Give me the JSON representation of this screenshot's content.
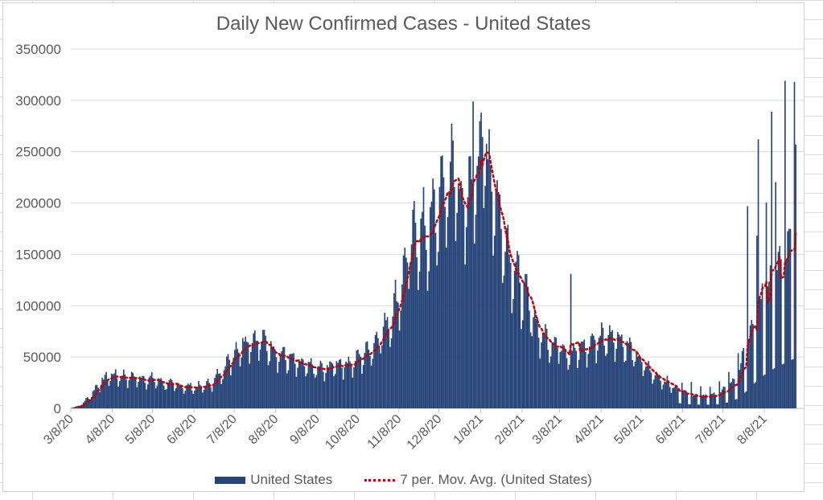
{
  "chart_data": {
    "type": "bar",
    "title": "Daily New Confirmed Cases - United States",
    "xlabel": "",
    "ylabel": "",
    "ylim": [
      0,
      350000
    ],
    "yticks": [
      0,
      50000,
      100000,
      150000,
      200000,
      250000,
      300000,
      350000
    ],
    "ytick_labels": [
      "0",
      "50000",
      "100000",
      "150000",
      "200000",
      "250000",
      "300000",
      "350000"
    ],
    "xtick_labels": [
      "3/8/20",
      "4/8/20",
      "5/8/20",
      "6/8/20",
      "7/8/20",
      "8/8/20",
      "9/8/20",
      "10/8/20",
      "11/8/20",
      "12/8/20",
      "1/8/21",
      "2/8/21",
      "3/8/21",
      "4/8/21",
      "5/8/21",
      "6/8/21",
      "7/8/21",
      "8/8/21"
    ],
    "x_start": "3/8/20",
    "x_end": "8/31/21",
    "grid": true,
    "legend_position": "bottom",
    "colors": {
      "bar": "#264478",
      "moving_average": "#c00000"
    },
    "series": [
      {
        "name": "United States",
        "kind": "bar",
        "weekly_avg_anchor_dates": [
          "3/8/20",
          "3/15/20",
          "3/22/20",
          "3/29/20",
          "4/5/20",
          "4/12/20",
          "4/19/20",
          "4/26/20",
          "5/3/20",
          "5/10/20",
          "5/17/20",
          "5/24/20",
          "5/31/20",
          "6/7/20",
          "6/14/20",
          "6/21/20",
          "6/28/20",
          "7/5/20",
          "7/12/20",
          "7/19/20",
          "7/26/20",
          "8/2/20",
          "8/9/20",
          "8/16/20",
          "8/23/20",
          "8/30/20",
          "9/6/20",
          "9/13/20",
          "9/20/20",
          "9/27/20",
          "10/4/20",
          "10/11/20",
          "10/18/20",
          "10/25/20",
          "11/1/20",
          "11/8/20",
          "11/15/20",
          "11/22/20",
          "11/29/20",
          "12/6/20",
          "12/13/20",
          "12/20/20",
          "12/27/20",
          "1/3/21",
          "1/10/21",
          "1/17/21",
          "1/24/21",
          "1/31/21",
          "2/7/21",
          "2/14/21",
          "2/21/21",
          "2/28/21",
          "3/7/21",
          "3/14/21",
          "3/21/21",
          "3/28/21",
          "4/4/21",
          "4/11/21",
          "4/18/21",
          "4/25/21",
          "5/2/21",
          "5/9/21",
          "5/16/21",
          "5/23/21",
          "5/30/21",
          "6/6/21",
          "6/13/21",
          "6/20/21",
          "6/27/21",
          "7/4/21",
          "7/11/21",
          "7/18/21",
          "7/25/21",
          "8/1/21",
          "8/8/21",
          "8/15/21",
          "8/22/21",
          "8/29/21"
        ],
        "weekly_avg_values": [
          500,
          3000,
          12000,
          24000,
          31000,
          31000,
          30000,
          29000,
          28000,
          27000,
          24000,
          22000,
          21000,
          20000,
          21000,
          24000,
          35000,
          48000,
          60000,
          66000,
          65000,
          60000,
          53000,
          48000,
          43000,
          40000,
          38000,
          37000,
          42000,
          43000,
          44000,
          50000,
          58000,
          71000,
          85000,
          110000,
          150000,
          170000,
          165000,
          190000,
          215000,
          225000,
          185000,
          230000,
          255000,
          215000,
          170000,
          140000,
          115000,
          95000,
          70000,
          65000,
          60000,
          54000,
          55000,
          58000,
          66000,
          68000,
          70000,
          62000,
          52000,
          42000,
          33000,
          28000,
          22000,
          16000,
          13000,
          12000,
          12000,
          13000,
          19000,
          30000,
          55000,
          85000,
          110000,
          130000,
          145000,
          160000
        ]
      },
      {
        "name": "7 per. Mov. Avg. (United States)",
        "kind": "line-dotted"
      }
    ],
    "notable_spikes": [
      {
        "date": "1/2/21",
        "value": 299000
      },
      {
        "date": "1/8/21",
        "value": 288000
      },
      {
        "date": "8/13/21",
        "value": 289000
      },
      {
        "date": "8/23/21",
        "value": 319000
      },
      {
        "date": "8/30/21",
        "value": 318000
      },
      {
        "date": "8/31/21",
        "value": 257000
      },
      {
        "date": "8/3/21",
        "value": 262000
      },
      {
        "date": "7/26/21",
        "value": 197000
      },
      {
        "date": "3/16/21",
        "value": 131000
      }
    ]
  },
  "legend": {
    "bar_label": "United States",
    "line_label": "7 per. Mov. Avg. (United States)"
  }
}
